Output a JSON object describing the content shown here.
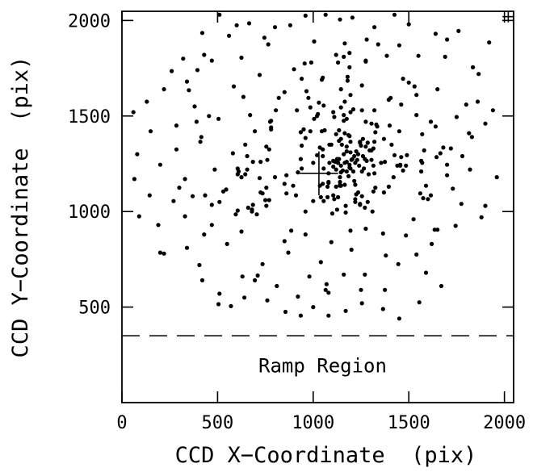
{
  "chart_data": {
    "type": "scatter",
    "xlabel": "CCD X−Coordinate  (pix)",
    "ylabel": "CCD Y−Coordinate  (pix)",
    "xlim": [
      0,
      2048
    ],
    "ylim": [
      0,
      2048
    ],
    "x_ticks": [
      0,
      500,
      1000,
      1500,
      2000
    ],
    "y_ticks": [
      500,
      1000,
      1500,
      2000
    ],
    "x_tick_labels": [
      "0",
      "500",
      "1000",
      "1500",
      "2000"
    ],
    "y_tick_labels": [
      "500",
      "1000",
      "1500",
      "2000"
    ],
    "grid": false,
    "ramp_region": {
      "label": "Ramp Region",
      "y_boundary": 350
    },
    "markers": [
      {
        "name": "center-cross",
        "x": 1030,
        "y": 1200,
        "half_width": 100,
        "half_height": 115
      },
      {
        "name": "corner-cross",
        "x": 2020,
        "y": 2020,
        "half_width": 30,
        "half_height": 30
      }
    ],
    "points": [
      [
        1065,
        2030
      ],
      [
        320,
        1800
      ],
      [
        1700,
        1900
      ],
      [
        1025,
        1510
      ],
      [
        990,
        1780
      ],
      [
        1280,
        1900
      ],
      [
        380,
        1550
      ],
      [
        1570,
        1255
      ],
      [
        1160,
        670
      ],
      [
        1160,
        1505
      ],
      [
        1460,
        1285
      ],
      [
        270,
        1055
      ],
      [
        1165,
        1880
      ],
      [
        670,
        1505
      ],
      [
        770,
        1060
      ],
      [
        940,
        1695
      ],
      [
        915,
        1530
      ],
      [
        1775,
        1040
      ],
      [
        1050,
        1700
      ],
      [
        430,
        880
      ],
      [
        1190,
        1395
      ],
      [
        1835,
        1755
      ],
      [
        765,
        1875
      ],
      [
        1425,
        2030
      ],
      [
        390,
        1470
      ],
      [
        1540,
        1610
      ],
      [
        1370,
        1380
      ],
      [
        285,
        1325
      ],
      [
        1125,
        1275
      ],
      [
        1220,
        1140
      ],
      [
        1190,
        1755
      ],
      [
        720,
        1175
      ],
      [
        750,
        1060
      ],
      [
        430,
        1820
      ],
      [
        1780,
        1290
      ],
      [
        850,
        845
      ],
      [
        880,
        1975
      ],
      [
        860,
        1190
      ],
      [
        735,
        725
      ],
      [
        605,
        1005
      ],
      [
        1120,
        1130
      ],
      [
        1370,
        1100
      ],
      [
        1080,
        575
      ],
      [
        200,
        785
      ],
      [
        1060,
        1425
      ],
      [
        1275,
        1790
      ],
      [
        1305,
        1460
      ],
      [
        1530,
        1655
      ],
      [
        600,
        1975
      ],
      [
        1180,
        1685
      ],
      [
        1285,
        1050
      ],
      [
        780,
        1430
      ],
      [
        505,
        515
      ],
      [
        1830,
        1390
      ],
      [
        595,
        985
      ],
      [
        1100,
        990
      ],
      [
        1645,
        1285
      ],
      [
        1245,
        1360
      ],
      [
        1235,
        1100
      ],
      [
        1145,
        1640
      ],
      [
        1355,
        1255
      ],
      [
        330,
        1170
      ],
      [
        1160,
        1810
      ],
      [
        1280,
        1265
      ],
      [
        1410,
        1350
      ],
      [
        1055,
        1055
      ],
      [
        1565,
        1210
      ],
      [
        1450,
        1420
      ],
      [
        1650,
        905
      ],
      [
        950,
        1430
      ],
      [
        980,
        660
      ],
      [
        635,
        1600
      ],
      [
        1125,
        1010
      ],
      [
        415,
        1390
      ],
      [
        1205,
        2015
      ],
      [
        1665,
        1305
      ],
      [
        1150,
        1350
      ],
      [
        1055,
        1555
      ],
      [
        1580,
        1320
      ],
      [
        900,
        1745
      ],
      [
        510,
        1050
      ],
      [
        340,
        1680
      ],
      [
        405,
        720
      ],
      [
        1130,
        1780
      ],
      [
        530,
        1105
      ],
      [
        625,
        1805
      ],
      [
        1490,
        1295
      ],
      [
        1440,
        1240
      ],
      [
        485,
        1220
      ],
      [
        470,
        1035
      ],
      [
        410,
        1365
      ],
      [
        1815,
        1410
      ],
      [
        1190,
        1830
      ],
      [
        395,
        1740
      ],
      [
        720,
        1715
      ],
      [
        625,
        895
      ],
      [
        780,
        1440
      ],
      [
        820,
        1595
      ],
      [
        1275,
        1785
      ],
      [
        1095,
        840
      ],
      [
        1075,
        1130
      ],
      [
        1560,
        1095
      ],
      [
        580,
        1305
      ],
      [
        1600,
        1065
      ],
      [
        1165,
        1575
      ],
      [
        940,
        1345
      ],
      [
        955,
        1775
      ],
      [
        1700,
        1245
      ],
      [
        435,
        1085
      ],
      [
        1210,
        1210
      ],
      [
        695,
        1420
      ],
      [
        1065,
        590
      ],
      [
        1540,
        1505
      ],
      [
        1420,
        1180
      ],
      [
        910,
        1085
      ],
      [
        625,
        1180
      ],
      [
        655,
        1220
      ],
      [
        1570,
        1405
      ],
      [
        1450,
        1870
      ],
      [
        610,
        1210
      ],
      [
        1030,
        1570
      ],
      [
        1325,
        1125
      ],
      [
        885,
        900
      ],
      [
        645,
        1350
      ],
      [
        1340,
        1875
      ],
      [
        1130,
        1075
      ],
      [
        1040,
        1075
      ],
      [
        1045,
        1690
      ],
      [
        1680,
        1335
      ],
      [
        1365,
        885
      ],
      [
        1270,
        670
      ],
      [
        735,
        1095
      ],
      [
        1330,
        1455
      ],
      [
        1860,
        1575
      ],
      [
        1615,
        1085
      ],
      [
        1095,
        1350
      ],
      [
        1455,
        1245
      ],
      [
        1395,
        1585
      ],
      [
        1075,
        1075
      ],
      [
        780,
        1475
      ],
      [
        755,
        1125
      ],
      [
        680,
        1010
      ],
      [
        695,
        640
      ],
      [
        1565,
        1265
      ],
      [
        660,
        1020
      ],
      [
        1500,
        1675
      ],
      [
        725,
        1260
      ],
      [
        1720,
        1330
      ],
      [
        1540,
        775
      ],
      [
        1590,
        1135
      ],
      [
        1170,
        995
      ],
      [
        370,
        1080
      ],
      [
        685,
        1260
      ],
      [
        1050,
        1325
      ],
      [
        680,
        1010
      ],
      [
        1130,
        1255
      ],
      [
        1180,
        1705
      ],
      [
        685,
        1035
      ],
      [
        1615,
        1470
      ],
      [
        1185,
        1400
      ],
      [
        1020,
        1500
      ],
      [
        1000,
        1255
      ],
      [
        1635,
        905
      ],
      [
        1395,
        1130
      ],
      [
        1110,
        1495
      ],
      [
        630,
        660
      ],
      [
        605,
        1225
      ],
      [
        1170,
        1030
      ],
      [
        895,
        1135
      ],
      [
        1140,
        1180
      ],
      [
        1255,
        1080
      ],
      [
        940,
        1225
      ],
      [
        960,
        1385
      ],
      [
        1035,
        1335
      ],
      [
        1120,
        1820
      ],
      [
        1575,
        1070
      ],
      [
        965,
        1630
      ],
      [
        1400,
        1450
      ],
      [
        985,
        1545
      ],
      [
        960,
        1000
      ],
      [
        655,
        1290
      ],
      [
        1145,
        1380
      ],
      [
        1325,
        1415
      ],
      [
        1445,
        725
      ],
      [
        985,
        1420
      ],
      [
        760,
        1270
      ],
      [
        1020,
        1295
      ],
      [
        1335,
        1445
      ],
      [
        1045,
        1420
      ],
      [
        1195,
        1610
      ],
      [
        1315,
        1240
      ],
      [
        1105,
        1085
      ],
      [
        725,
        1100
      ],
      [
        1315,
        1105
      ],
      [
        1275,
        1470
      ],
      [
        1215,
        1160
      ],
      [
        455,
        1500
      ],
      [
        1110,
        1065
      ],
      [
        1255,
        1530
      ],
      [
        1295,
        1320
      ],
      [
        1140,
        1155
      ],
      [
        755,
        1340
      ],
      [
        755,
        1030
      ],
      [
        1270,
        1020
      ],
      [
        1285,
        1360
      ],
      [
        1405,
        1595
      ],
      [
        1245,
        1035
      ],
      [
        1145,
        1135
      ],
      [
        1080,
        1200
      ],
      [
        1195,
        900
      ],
      [
        545,
        1115
      ],
      [
        775,
        1470
      ],
      [
        1455,
        1240
      ],
      [
        1195,
        1365
      ],
      [
        1085,
        1350
      ],
      [
        1050,
        1290
      ],
      [
        645,
        1195
      ],
      [
        1195,
        1520
      ],
      [
        1220,
        1050
      ],
      [
        1275,
        910
      ],
      [
        1470,
        1215
      ],
      [
        1145,
        1545
      ],
      [
        1485,
        1240
      ],
      [
        605,
        1195
      ],
      [
        1080,
        1150
      ],
      [
        680,
        1000
      ],
      [
        1245,
        1365
      ],
      [
        1050,
        1145
      ],
      [
        935,
        1275
      ],
      [
        1320,
        1365
      ],
      [
        770,
        1325
      ],
      [
        1080,
        1155
      ],
      [
        1375,
        1260
      ],
      [
        860,
        1095
      ],
      [
        1105,
        1265
      ],
      [
        1210,
        1535
      ],
      [
        1315,
        1330
      ],
      [
        935,
        1415
      ],
      [
        1135,
        1370
      ],
      [
        1305,
        1270
      ],
      [
        1140,
        1135
      ],
      [
        1225,
        1090
      ],
      [
        1130,
        1255
      ],
      [
        975,
        1595
      ],
      [
        1245,
        1040
      ],
      [
        1165,
        1140
      ],
      [
        1320,
        1200
      ],
      [
        1165,
        1410
      ],
      [
        1215,
        1290
      ],
      [
        850,
        1145
      ],
      [
        1105,
        1520
      ],
      [
        1425,
        1295
      ],
      [
        1260,
        1380
      ],
      [
        1005,
        1485
      ],
      [
        1000,
        1055
      ],
      [
        1230,
        1270
      ],
      [
        1135,
        1425
      ],
      [
        1140,
        1140
      ],
      [
        1165,
        1255
      ],
      [
        1220,
        1065
      ],
      [
        1035,
        1135
      ],
      [
        1240,
        1240
      ],
      [
        1175,
        1485
      ],
      [
        1310,
        1000
      ],
      [
        1120,
        1220
      ],
      [
        800,
        1180
      ],
      [
        1265,
        1225
      ],
      [
        1290,
        1195
      ],
      [
        1105,
        1235
      ],
      [
        1275,
        1340
      ],
      [
        1175,
        1210
      ],
      [
        1235,
        1300
      ],
      [
        1120,
        1405
      ],
      [
        1260,
        1290
      ],
      [
        1305,
        1320
      ],
      [
        1135,
        1275
      ],
      [
        1160,
        1300
      ],
      [
        1160,
        1475
      ],
      [
        1255,
        1210
      ],
      [
        1270,
        1275
      ],
      [
        1115,
        1260
      ],
      [
        1220,
        1255
      ],
      [
        1145,
        1240
      ],
      [
        1185,
        1185
      ],
      [
        920,
        1205
      ],
      [
        1190,
        1245
      ],
      [
        1250,
        1345
      ],
      [
        1055,
        1225
      ],
      [
        1145,
        1205
      ],
      [
        1195,
        1225
      ],
      [
        1085,
        1255
      ],
      [
        1175,
        1340
      ],
      [
        1205,
        1275
      ],
      [
        1195,
        1310
      ],
      [
        1225,
        1315
      ],
      [
        1155,
        1215
      ],
      [
        1175,
        1315
      ],
      [
        1190,
        1230
      ],
      [
        1200,
        1270
      ],
      [
        1175,
        1260
      ],
      [
        420,
        1935
      ],
      [
        510,
        2030
      ],
      [
        665,
        1985
      ],
      [
        800,
        1965
      ],
      [
        960,
        2025
      ],
      [
        1140,
        2005
      ],
      [
        1320,
        1965
      ],
      [
        1500,
        1980
      ],
      [
        1640,
        1930
      ],
      [
        1760,
        1945
      ],
      [
        1920,
        1885
      ],
      [
        260,
        1735
      ],
      [
        470,
        1790
      ],
      [
        560,
        1920
      ],
      [
        745,
        1910
      ],
      [
        1005,
        1890
      ],
      [
        1385,
        1815
      ],
      [
        1550,
        1815
      ],
      [
        1690,
        1810
      ],
      [
        1865,
        1720
      ],
      [
        130,
        1575
      ],
      [
        220,
        1640
      ],
      [
        350,
        1635
      ],
      [
        585,
        1655
      ],
      [
        850,
        1625
      ],
      [
        1255,
        1660
      ],
      [
        1470,
        1695
      ],
      [
        1650,
        1640
      ],
      [
        1800,
        1560
      ],
      [
        1940,
        1530
      ],
      [
        60,
        1520
      ],
      [
        150,
        1420
      ],
      [
        285,
        1450
      ],
      [
        505,
        1485
      ],
      [
        1320,
        1530
      ],
      [
        1460,
        1560
      ],
      [
        1640,
        1445
      ],
      [
        1750,
        1495
      ],
      [
        1900,
        1460
      ],
      [
        80,
        1300
      ],
      [
        200,
        1245
      ],
      [
        1700,
        1190
      ],
      [
        1820,
        1220
      ],
      [
        1960,
        1180
      ],
      [
        65,
        1170
      ],
      [
        145,
        1085
      ],
      [
        300,
        1125
      ],
      [
        1730,
        1120
      ],
      [
        1900,
        1030
      ],
      [
        90,
        975
      ],
      [
        190,
        930
      ],
      [
        1745,
        925
      ],
      [
        1880,
        970
      ],
      [
        220,
        780
      ],
      [
        340,
        810
      ],
      [
        420,
        640
      ],
      [
        510,
        570
      ],
      [
        570,
        505
      ],
      [
        640,
        550
      ],
      [
        760,
        535
      ],
      [
        855,
        475
      ],
      [
        935,
        455
      ],
      [
        1000,
        500
      ],
      [
        1080,
        455
      ],
      [
        1170,
        480
      ],
      [
        1255,
        520
      ],
      [
        1365,
        490
      ],
      [
        1450,
        440
      ],
      [
        1555,
        525
      ],
      [
        1670,
        610
      ],
      [
        1590,
        680
      ],
      [
        1375,
        590
      ],
      [
        1250,
        590
      ],
      [
        1070,
        620
      ],
      [
        920,
        555
      ],
      [
        810,
        610
      ],
      [
        710,
        665
      ],
      [
        550,
        830
      ],
      [
        470,
        930
      ],
      [
        330,
        975
      ],
      [
        705,
        985
      ],
      [
        870,
        785
      ],
      [
        1040,
        735
      ],
      [
        1200,
        800
      ],
      [
        1380,
        770
      ],
      [
        1485,
        875
      ],
      [
        1620,
        830
      ],
      [
        1525,
        960
      ],
      [
        960,
        880
      ],
      [
        805,
        1530
      ]
    ]
  }
}
